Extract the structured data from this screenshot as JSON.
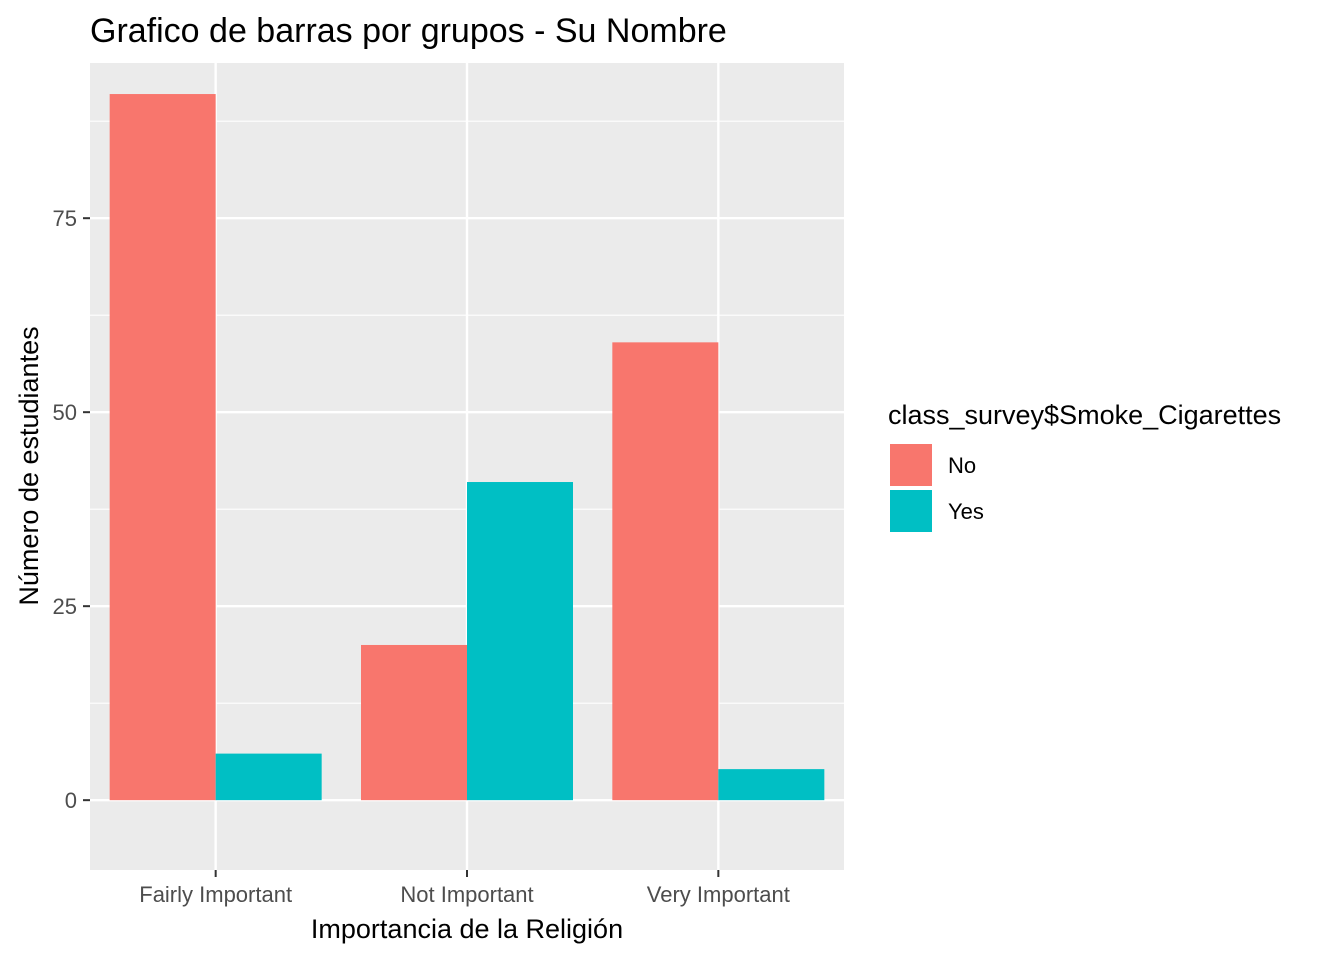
{
  "chart_data": {
    "type": "bar",
    "title": "Grafico de barras por grupos - Su Nombre",
    "xlabel": "Importancia de la Religión",
    "ylabel": "Número de estudiantes",
    "categories": [
      "Fairly Important",
      "Not Important",
      "Very Important"
    ],
    "series": [
      {
        "name": "No",
        "values": [
          91,
          20,
          59
        ],
        "color": "#F8766D"
      },
      {
        "name": "Yes",
        "values": [
          6,
          41,
          4
        ],
        "color": "#00BFC4"
      }
    ],
    "ylim": [
      -9,
      95
    ],
    "yticks": [
      0,
      25,
      50,
      75
    ],
    "grid": true,
    "legend": {
      "title": "class_survey$Smoke_Cigarettes",
      "placement": "right"
    },
    "panel_background": "#EBEBEB"
  }
}
